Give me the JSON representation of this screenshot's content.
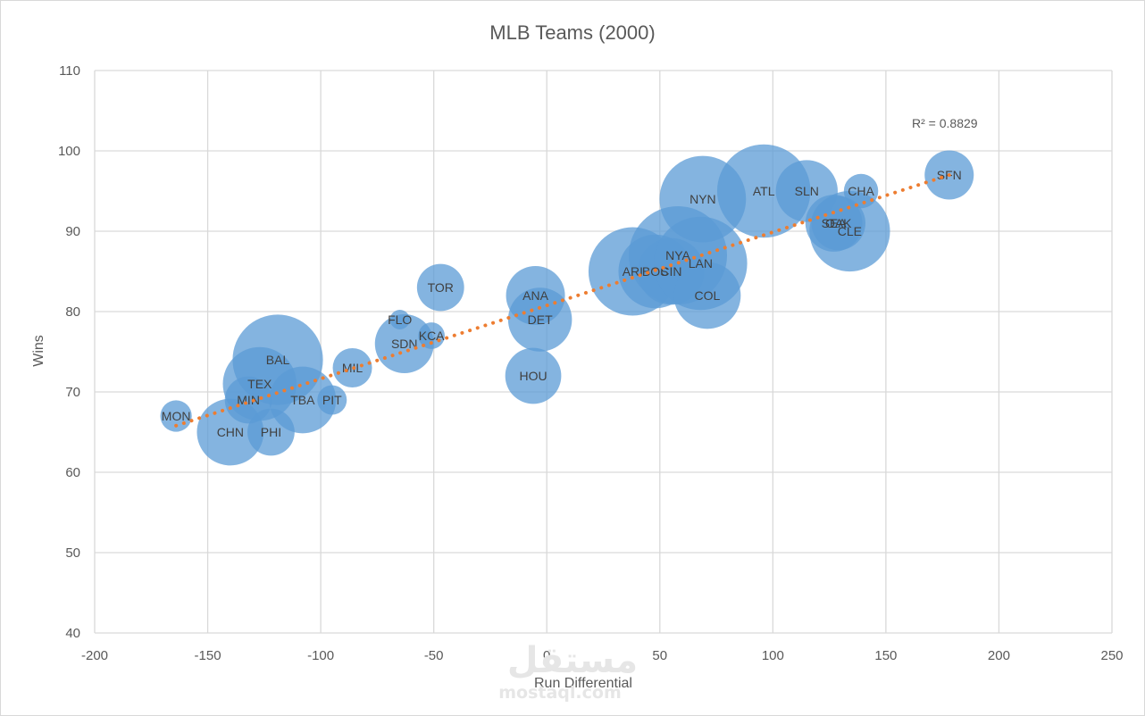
{
  "chart_data": {
    "type": "bubble",
    "title": "MLB Teams (2000)",
    "xlabel": "Run Differential",
    "ylabel": "Wins",
    "xlim": [
      -200,
      250
    ],
    "ylim": [
      40,
      110
    ],
    "xticks": [
      -200,
      -150,
      -100,
      -50,
      0,
      50,
      100,
      150,
      200,
      250
    ],
    "yticks": [
      40,
      50,
      60,
      70,
      80,
      90,
      100,
      110
    ],
    "grid": true,
    "series": [
      {
        "name": "Teams",
        "color": "#5b9bd5",
        "points": [
          {
            "label": "MON",
            "x": -164,
            "y": 67,
            "size": 0.32
          },
          {
            "label": "CHN",
            "x": -140,
            "y": 65,
            "size": 0.68
          },
          {
            "label": "PHI",
            "x": -122,
            "y": 65,
            "size": 0.48
          },
          {
            "label": "MIN",
            "x": -132,
            "y": 69,
            "size": 0.48
          },
          {
            "label": "TEX",
            "x": -127,
            "y": 71,
            "size": 0.75
          },
          {
            "label": "BAL",
            "x": -119,
            "y": 74,
            "size": 0.92
          },
          {
            "label": "TBA",
            "x": -108,
            "y": 69,
            "size": 0.68
          },
          {
            "label": "PIT",
            "x": -95,
            "y": 69,
            "size": 0.3
          },
          {
            "label": "MIL",
            "x": -86,
            "y": 73,
            "size": 0.4
          },
          {
            "label": "FLO",
            "x": -65,
            "y": 79,
            "size": 0.2
          },
          {
            "label": "SDN",
            "x": -63,
            "y": 76,
            "size": 0.6
          },
          {
            "label": "KCA",
            "x": -51,
            "y": 77,
            "size": 0.27
          },
          {
            "label": "TOR",
            "x": -47,
            "y": 83,
            "size": 0.48
          },
          {
            "label": "ANA",
            "x": -5,
            "y": 82,
            "size": 0.6
          },
          {
            "label": "DET",
            "x": -3,
            "y": 79,
            "size": 0.65
          },
          {
            "label": "HOU",
            "x": -6,
            "y": 72,
            "size": 0.57
          },
          {
            "label": "ARI",
            "x": 38,
            "y": 85,
            "size": 0.9
          },
          {
            "label": "BOS",
            "x": 48,
            "y": 85,
            "size": 0.75
          },
          {
            "label": "NYA",
            "x": 58,
            "y": 87,
            "size": 1.0
          },
          {
            "label": "CIN",
            "x": 55,
            "y": 85,
            "size": 0.68
          },
          {
            "label": "LAN",
            "x": 68,
            "y": 86,
            "size": 0.95
          },
          {
            "label": "COL",
            "x": 71,
            "y": 82,
            "size": 0.68
          },
          {
            "label": "NYN",
            "x": 69,
            "y": 94,
            "size": 0.88
          },
          {
            "label": "ATL",
            "x": 96,
            "y": 95,
            "size": 0.95
          },
          {
            "label": "SLN",
            "x": 115,
            "y": 95,
            "size": 0.63
          },
          {
            "label": "SEA",
            "x": 127,
            "y": 91,
            "size": 0.58
          },
          {
            "label": "OAK",
            "x": 129,
            "y": 91,
            "size": 0.55
          },
          {
            "label": "CLE",
            "x": 134,
            "y": 90,
            "size": 0.82
          },
          {
            "label": "CHA",
            "x": 139,
            "y": 95,
            "size": 0.35
          },
          {
            "label": "SFN",
            "x": 178,
            "y": 97,
            "size": 0.5
          }
        ]
      }
    ],
    "trendline": {
      "type": "linear",
      "style": "dotted",
      "color": "#ed7d31",
      "x_start": -164,
      "y_start": 65.8,
      "x_end": 178,
      "y_end": 97.0,
      "r_squared_label": "R² = 0.8829"
    },
    "watermark": {
      "arabic": "مستقل",
      "latin": "mostaql.com"
    }
  }
}
